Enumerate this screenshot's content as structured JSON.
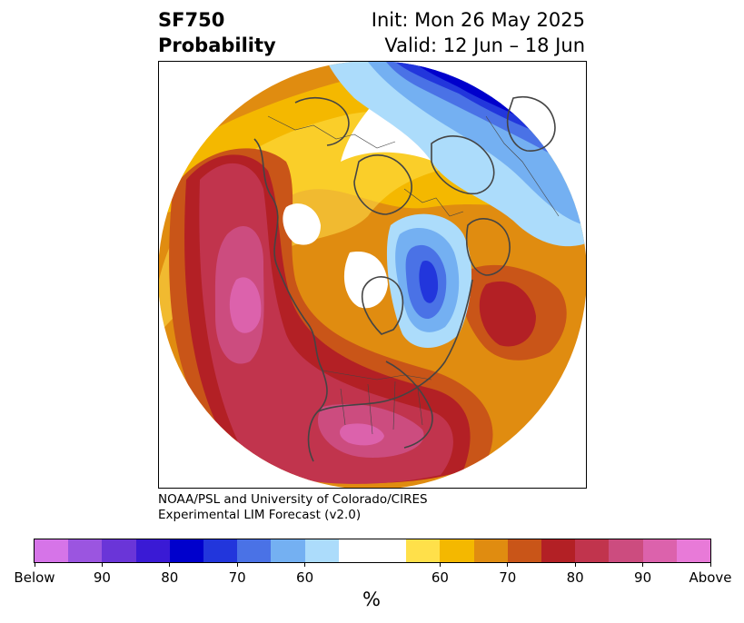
{
  "header": {
    "title_line1": "SF750",
    "title_line2": "Probability",
    "init": "Init: Mon 26 May 2025",
    "valid": "Valid: 12 Jun – 18 Jun"
  },
  "credit": {
    "line1": "NOAA/PSL and University of Colorado/CIRES",
    "line2": "Experimental LIM Forecast (v2.0)"
  },
  "colorbar": {
    "unit": "%",
    "colors": [
      "#d674e8",
      "#9b55e0",
      "#6a35d8",
      "#3a1ad5",
      "#0000cc",
      "#2236dc",
      "#4a72e6",
      "#74b0f2",
      "#acdcfb",
      "#ffffff",
      "#ffffff",
      "#ffe04a",
      "#f4b800",
      "#e08c10",
      "#c95518",
      "#b32025",
      "#c1344d",
      "#cc4c7f",
      "#dc62ac",
      "#e87ad8"
    ],
    "tick_labels": [
      "Below",
      "90",
      "80",
      "70",
      "60",
      "60",
      "70",
      "80",
      "90",
      "Above"
    ]
  },
  "map": {
    "palette": {
      "white": "#ffffff",
      "yellow": "#ffe04a",
      "gold": "#f4b800",
      "orange": "#e08c10",
      "burnt": "#c95518",
      "red": "#b32025",
      "crimson": "#c1344d",
      "rose": "#cc4c7f",
      "pink": "#dc62ac",
      "pale_blue": "#acdcfb",
      "light_blue": "#74b0f2",
      "mid_blue": "#4a72e6",
      "blue": "#2236dc",
      "navy": "#0000cc",
      "coast": "#444444"
    }
  }
}
